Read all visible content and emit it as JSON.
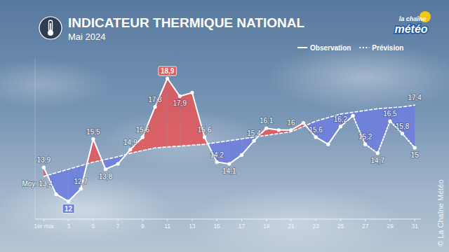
{
  "chart_data": {
    "type": "line",
    "title": "INDICATEUR THERMIQUE NATIONAL",
    "subtitle": "Mai 2024",
    "logo": [
      "la chaîne",
      "météo"
    ],
    "credit": "© La Chaîne Météo",
    "x": [
      1,
      2,
      3,
      4,
      5,
      6,
      7,
      8,
      9,
      10,
      11,
      12,
      13,
      14,
      15,
      16,
      17,
      18,
      19,
      20,
      21,
      22,
      23,
      24,
      25,
      26,
      27,
      28,
      29,
      30,
      31
    ],
    "xlim": [
      0.3,
      31.5
    ],
    "xticks": [
      {
        "value": 1,
        "label": "1er mai"
      },
      3,
      5,
      7,
      9,
      11,
      13,
      15,
      17,
      19,
      21,
      23,
      25,
      27,
      29,
      31
    ],
    "ylim": [
      11,
      20
    ],
    "tick_labels": "x",
    "grid": false,
    "legend": "upper right",
    "data_labels": true,
    "series": [
      {
        "name": "Observation",
        "color": "#ffffff",
        "line_style": "solid",
        "marker": "circle",
        "values": [
          13.9,
          12.4,
          12,
          12.7,
          15.5,
          13.8,
          14.1,
          14.9,
          15.6,
          17.3,
          18.9,
          17.9,
          18.1,
          15.6,
          14.2,
          14.1,
          14.6,
          15.4,
          16.1,
          16.0,
          16,
          16.4,
          15.6,
          15.2,
          16.2,
          16.8,
          null,
          null,
          null,
          null,
          null
        ],
        "value_labels": [
          "13,9",
          null,
          "12",
          "12,7",
          "15,5",
          "13,8",
          null,
          "14,9",
          "15,6",
          "17,3",
          "18,9",
          "17,9",
          null,
          "15,6",
          "14,2",
          "14,1",
          null,
          "15,4",
          "16,1",
          null,
          "16",
          null,
          "15,6",
          null,
          "16,2",
          null,
          null,
          null,
          null,
          null,
          null
        ]
      },
      {
        "name": "Prévision",
        "color": "#ffffff",
        "line_style": "dotted",
        "marker": "circle",
        "values": [
          null,
          null,
          null,
          null,
          null,
          null,
          null,
          null,
          null,
          null,
          null,
          null,
          null,
          null,
          null,
          null,
          null,
          null,
          null,
          null,
          null,
          null,
          null,
          null,
          null,
          16.8,
          15.2,
          14.7,
          16.5,
          15.8,
          15
        ],
        "value_labels": [
          null,
          null,
          null,
          null,
          null,
          null,
          null,
          null,
          null,
          null,
          null,
          null,
          null,
          null,
          null,
          null,
          null,
          null,
          null,
          null,
          null,
          null,
          null,
          null,
          null,
          null,
          "15,2",
          "14,7",
          "16,5",
          "15,8",
          "15"
        ]
      }
    ],
    "reference": {
      "label": "Moy.",
      "color": "#ffffff",
      "line_style": "dashed",
      "values": [
        13.4,
        13.6,
        13.8,
        14.0,
        14.2,
        14.35,
        14.5,
        14.7,
        14.85,
        15.0,
        15.05,
        15.1,
        15.15,
        15.2,
        15.3,
        15.4,
        15.5,
        15.6,
        15.7,
        15.8,
        15.9,
        16.2,
        16.5,
        16.7,
        16.9,
        17.0,
        17.1,
        17.2,
        17.25,
        17.3,
        17.4
      ],
      "value_labels": [
        "13,4",
        null,
        null,
        null,
        null,
        null,
        null,
        null,
        null,
        null,
        null,
        null,
        null,
        null,
        null,
        null,
        null,
        null,
        null,
        null,
        null,
        null,
        null,
        null,
        null,
        null,
        null,
        null,
        null,
        null,
        "17,4"
      ]
    }
  }
}
